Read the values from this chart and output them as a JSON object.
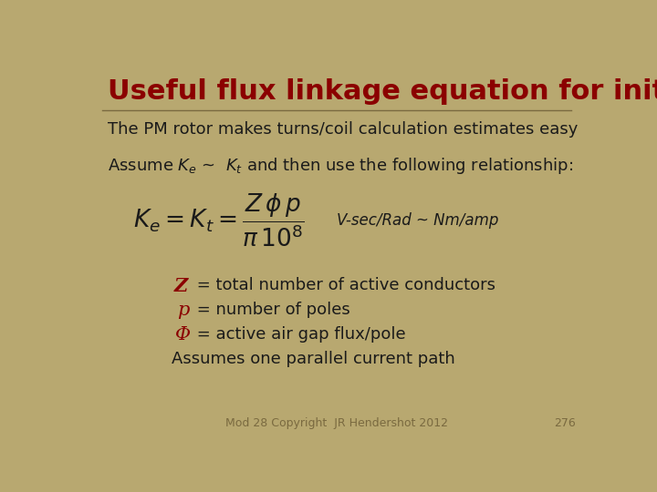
{
  "bg_color": "#b8a870",
  "title": "Useful flux linkage equation for initial design",
  "title_color": "#8b0000",
  "title_fontsize": 22,
  "line1": "The PM rotor makes turns/coil calculation estimates easy",
  "line2": "Assume $K_e$ ~  $K_t$ and then use the following relationship:",
  "equation_latex": "$K_e = K_t = \\dfrac{Z\\,\\phi\\, p}{\\pi\\, 10^8}$",
  "annotation": "V-sec/Rad ~ Nm/amp",
  "bullet1_sym": "Z",
  "bullet1_text": " = total number of active conductors",
  "bullet2_sym": "p",
  "bullet2_text": " = number of poles",
  "bullet3_sym": "Φ",
  "bullet3_text": " = active air gap flux/pole",
  "bullet4": "Assumes one parallel current path",
  "footer": "Mod 28 Copyright  JR Hendershot 2012",
  "footer_page": "276",
  "text_color": "#1a1a1a",
  "dark_red": "#8b0000",
  "footer_color": "#7a6a40",
  "line_color": "#7a6a40"
}
